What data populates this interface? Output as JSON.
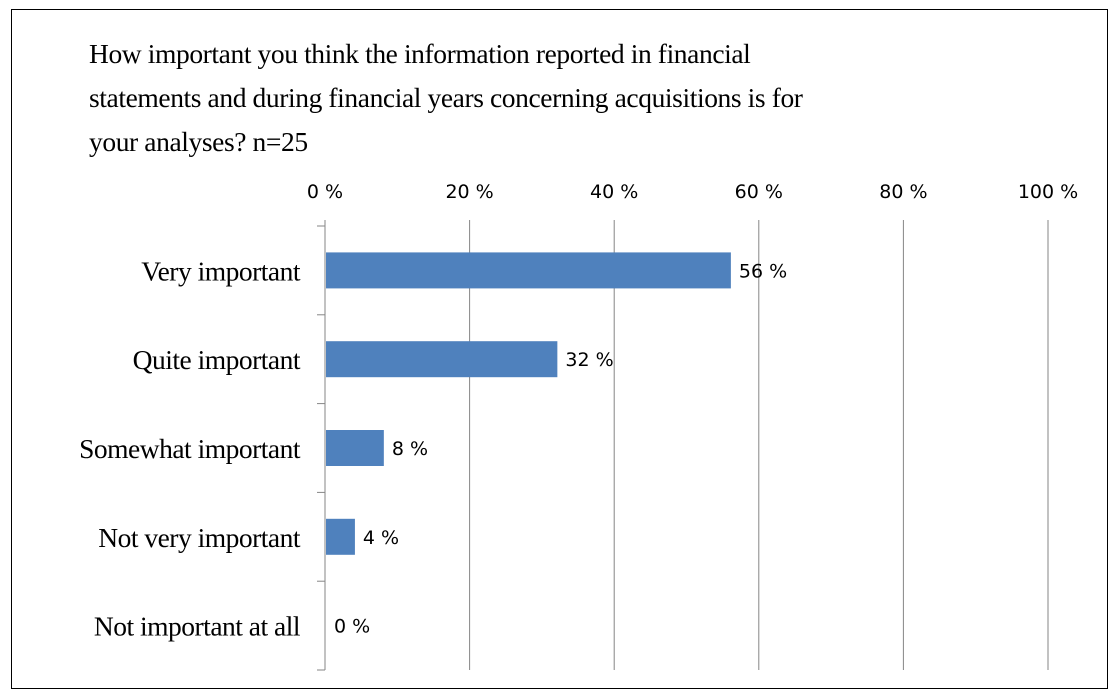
{
  "chart_data": {
    "type": "bar",
    "orientation": "horizontal",
    "title_lines": [
      "How important you think the information reported in financial",
      "statements and during financial years concerning acquisitions is for",
      "your analyses? n=25"
    ],
    "categories": [
      "Very important",
      "Quite important",
      "Somewhat important",
      "Not very important",
      "Not important at all"
    ],
    "values": [
      56,
      32,
      8,
      4,
      0
    ],
    "data_labels": [
      "56 %",
      "32 %",
      "8 %",
      "4 %",
      "0 %"
    ],
    "xlim": [
      0,
      100
    ],
    "x_ticks": [
      0,
      20,
      40,
      60,
      80,
      100
    ],
    "x_tick_labels": [
      "0 %",
      "20 %",
      "40 %",
      "60 %",
      "80 %",
      "100 %"
    ],
    "x_axis_position": "top",
    "grid": true,
    "bar_color": "#4F81BD",
    "grid_color": "#868686"
  }
}
